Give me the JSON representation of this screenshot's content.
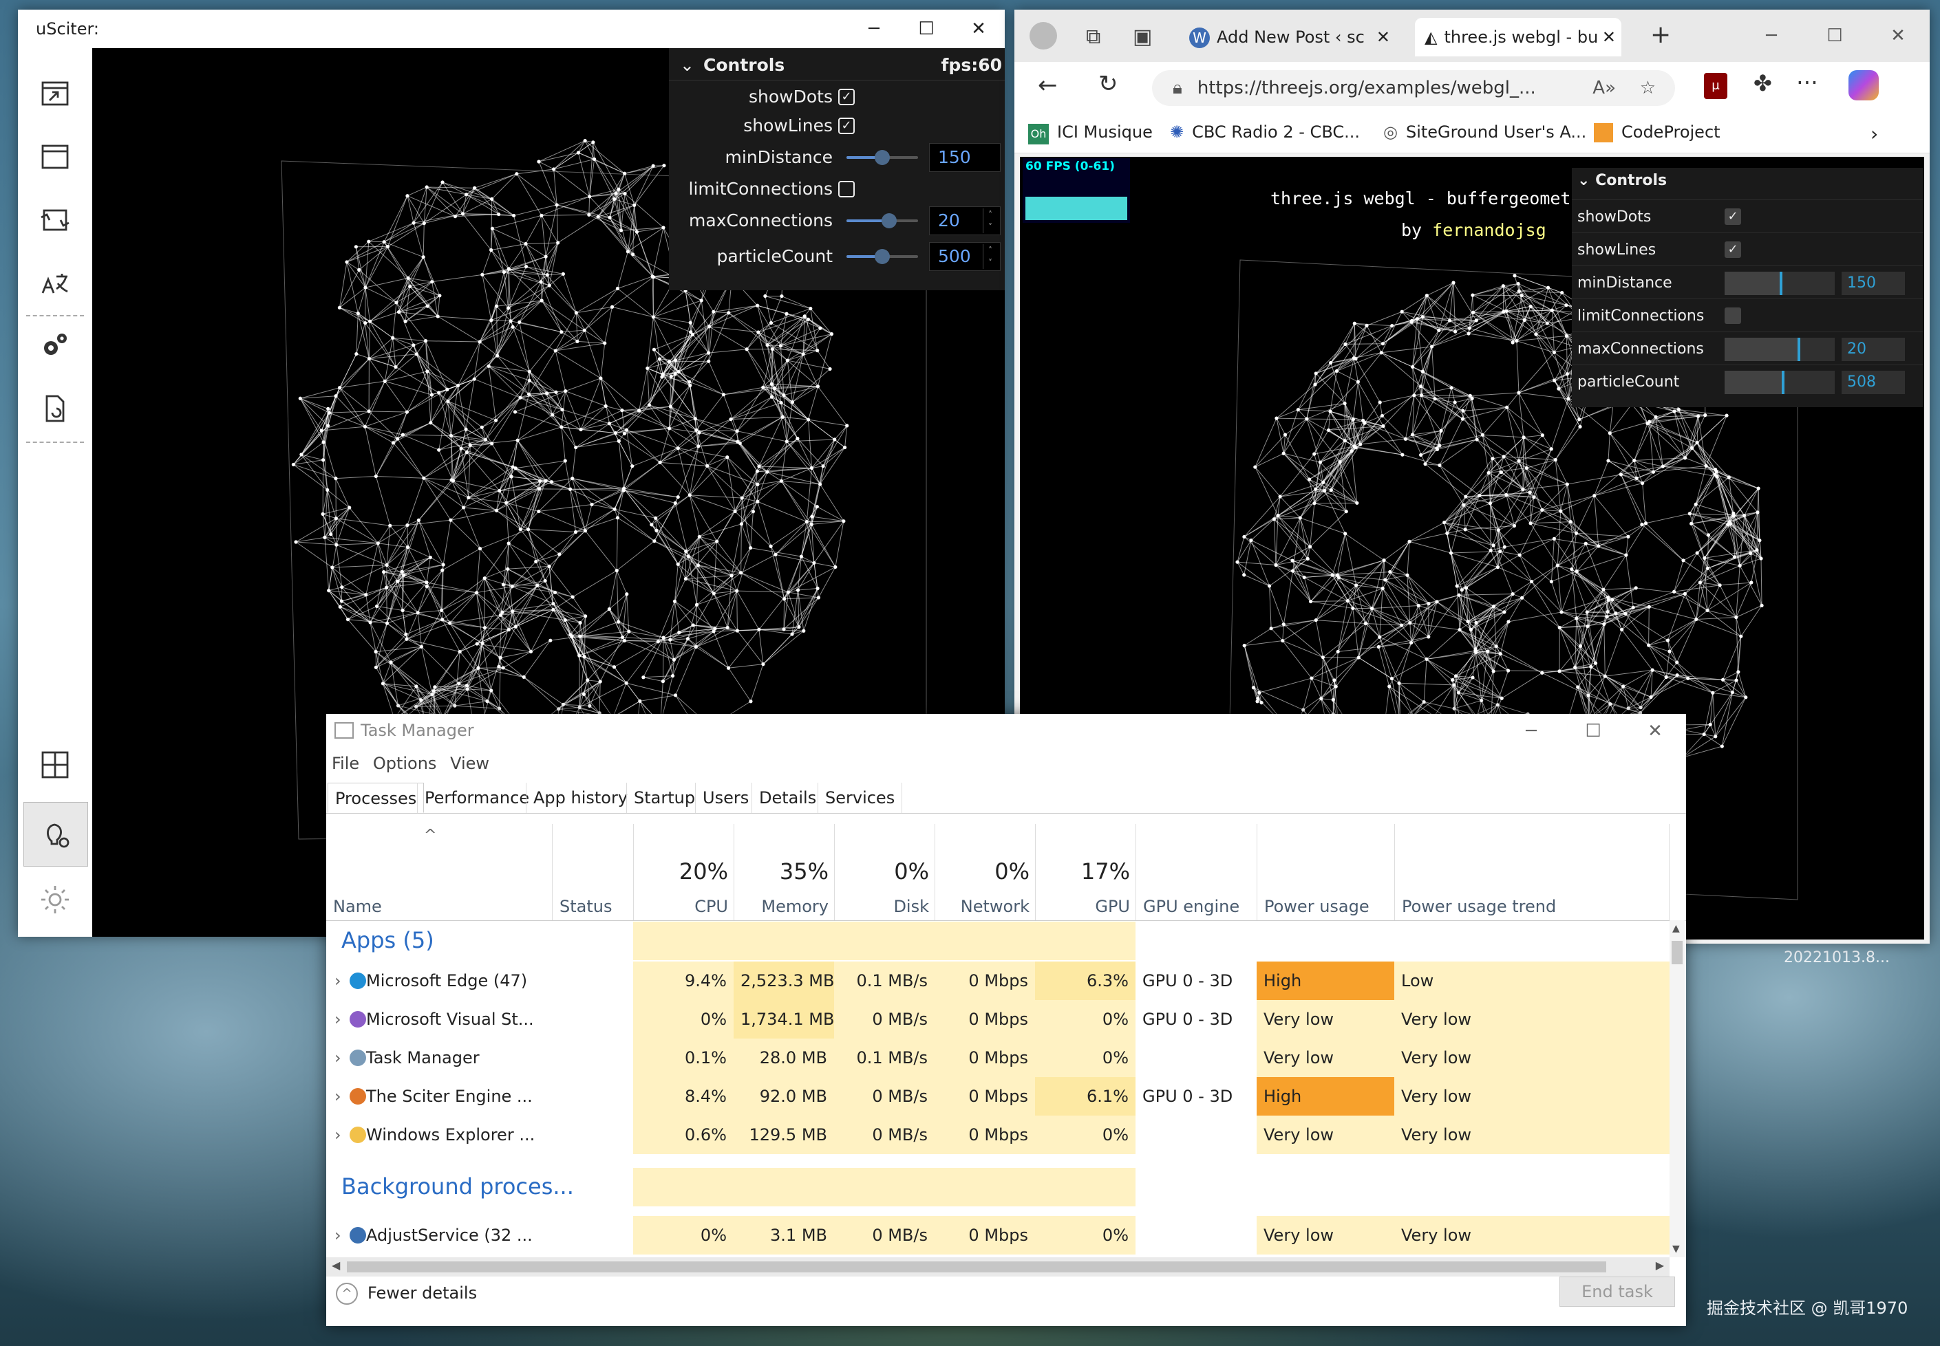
{
  "desktop": {
    "timestamp_label": "20221013.8...",
    "watermark": "掘金技术社区 @ 凯哥1970"
  },
  "usciter": {
    "title": "uSciter:",
    "controls": {
      "header": "Controls",
      "fps": "fps:60",
      "showDots": {
        "label": "showDots",
        "checked": true
      },
      "showLines": {
        "label": "showLines",
        "checked": true
      },
      "minDistance": {
        "label": "minDistance",
        "value": "150",
        "level": 0.5
      },
      "limitConnections": {
        "label": "limitConnections",
        "checked": false
      },
      "maxConnections": {
        "label": "maxConnections",
        "value": "20",
        "level": 0.6
      },
      "particleCount": {
        "label": "particleCount",
        "value": "500",
        "level": 0.5
      }
    }
  },
  "browser": {
    "tabs": [
      {
        "label": "Add New Post ‹ sc"
      },
      {
        "label": "three.js webgl - bu"
      }
    ],
    "url": "https://threejs.org/examples/webgl_...",
    "bookmarks": [
      "ICI Musique",
      "CBC Radio 2 - CBC...",
      "SiteGround User's A...",
      "CodeProject"
    ],
    "stats": "60 FPS (0-61)",
    "page_title": "three.js webgl - buffergeometr",
    "byline_prefix": "by",
    "byline_author": "fernandojsg",
    "controls": {
      "header": "Controls",
      "showDots": {
        "label": "showDots",
        "checked": true
      },
      "showLines": {
        "label": "showLines",
        "checked": true
      },
      "minDistance": {
        "label": "minDistance",
        "value": "150",
        "level": 0.5
      },
      "limitConnections": {
        "label": "limitConnections",
        "checked": false
      },
      "maxConnections": {
        "label": "maxConnections",
        "value": "20",
        "level": 0.66
      },
      "particleCount": {
        "label": "particleCount",
        "value": "508",
        "level": 0.52
      }
    }
  },
  "taskmanager": {
    "title": "Task Manager",
    "menu": [
      "File",
      "Options",
      "View"
    ],
    "tabs": [
      "Processes",
      "Performance",
      "App history",
      "Startup",
      "Users",
      "Details",
      "Services"
    ],
    "columns": {
      "name": "Name",
      "status": "Status",
      "cpu": {
        "pct": "20%",
        "label": "CPU"
      },
      "memory": {
        "pct": "35%",
        "label": "Memory"
      },
      "disk": {
        "pct": "0%",
        "label": "Disk"
      },
      "network": {
        "pct": "0%",
        "label": "Network"
      },
      "gpu": {
        "pct": "17%",
        "label": "GPU"
      },
      "gpu_engine": "GPU engine",
      "power": "Power usage",
      "power_trend": "Power usage trend"
    },
    "groups": {
      "apps": "Apps (5)",
      "background": "Background proces..."
    },
    "rows": [
      {
        "name": "Microsoft Edge (47)",
        "icon": "edge-icon",
        "cpu": "9.4%",
        "mem": "2,523.3 MB",
        "disk": "0.1 MB/s",
        "net": "0 Mbps",
        "gpu": "6.3%",
        "engine": "GPU 0 - 3D",
        "power": "High",
        "trend": "Low"
      },
      {
        "name": "Microsoft Visual St...",
        "icon": "visual-studio-icon",
        "cpu": "0%",
        "mem": "1,734.1 MB",
        "disk": "0 MB/s",
        "net": "0 Mbps",
        "gpu": "0%",
        "engine": "GPU 0 - 3D",
        "power": "Very low",
        "trend": "Very low"
      },
      {
        "name": "Task Manager",
        "icon": "task-manager-icon",
        "cpu": "0.1%",
        "mem": "28.0 MB",
        "disk": "0.1 MB/s",
        "net": "0 Mbps",
        "gpu": "0%",
        "engine": "",
        "power": "Very low",
        "trend": "Very low"
      },
      {
        "name": "The Sciter Engine ...",
        "icon": "sciter-icon",
        "cpu": "8.4%",
        "mem": "92.0 MB",
        "disk": "0 MB/s",
        "net": "0 Mbps",
        "gpu": "6.1%",
        "engine": "GPU 0 - 3D",
        "power": "High",
        "trend": "Very low"
      },
      {
        "name": "Windows Explorer ...",
        "icon": "explorer-icon",
        "cpu": "0.6%",
        "mem": "129.5 MB",
        "disk": "0 MB/s",
        "net": "0 Mbps",
        "gpu": "0%",
        "engine": "",
        "power": "Very low",
        "trend": "Very low"
      }
    ],
    "bg_rows": [
      {
        "name": "AdjustService (32 ...",
        "icon": "service-icon",
        "cpu": "0%",
        "mem": "3.1 MB",
        "disk": "0 MB/s",
        "net": "0 Mbps",
        "gpu": "0%",
        "engine": "",
        "power": "Very low",
        "trend": "Very low"
      }
    ],
    "fewer_details": "Fewer details",
    "end_task": "End task",
    "colors": {
      "high": "#f7a12c",
      "heat": "#fff2c3",
      "heat_strong": "#fde9a3"
    }
  }
}
